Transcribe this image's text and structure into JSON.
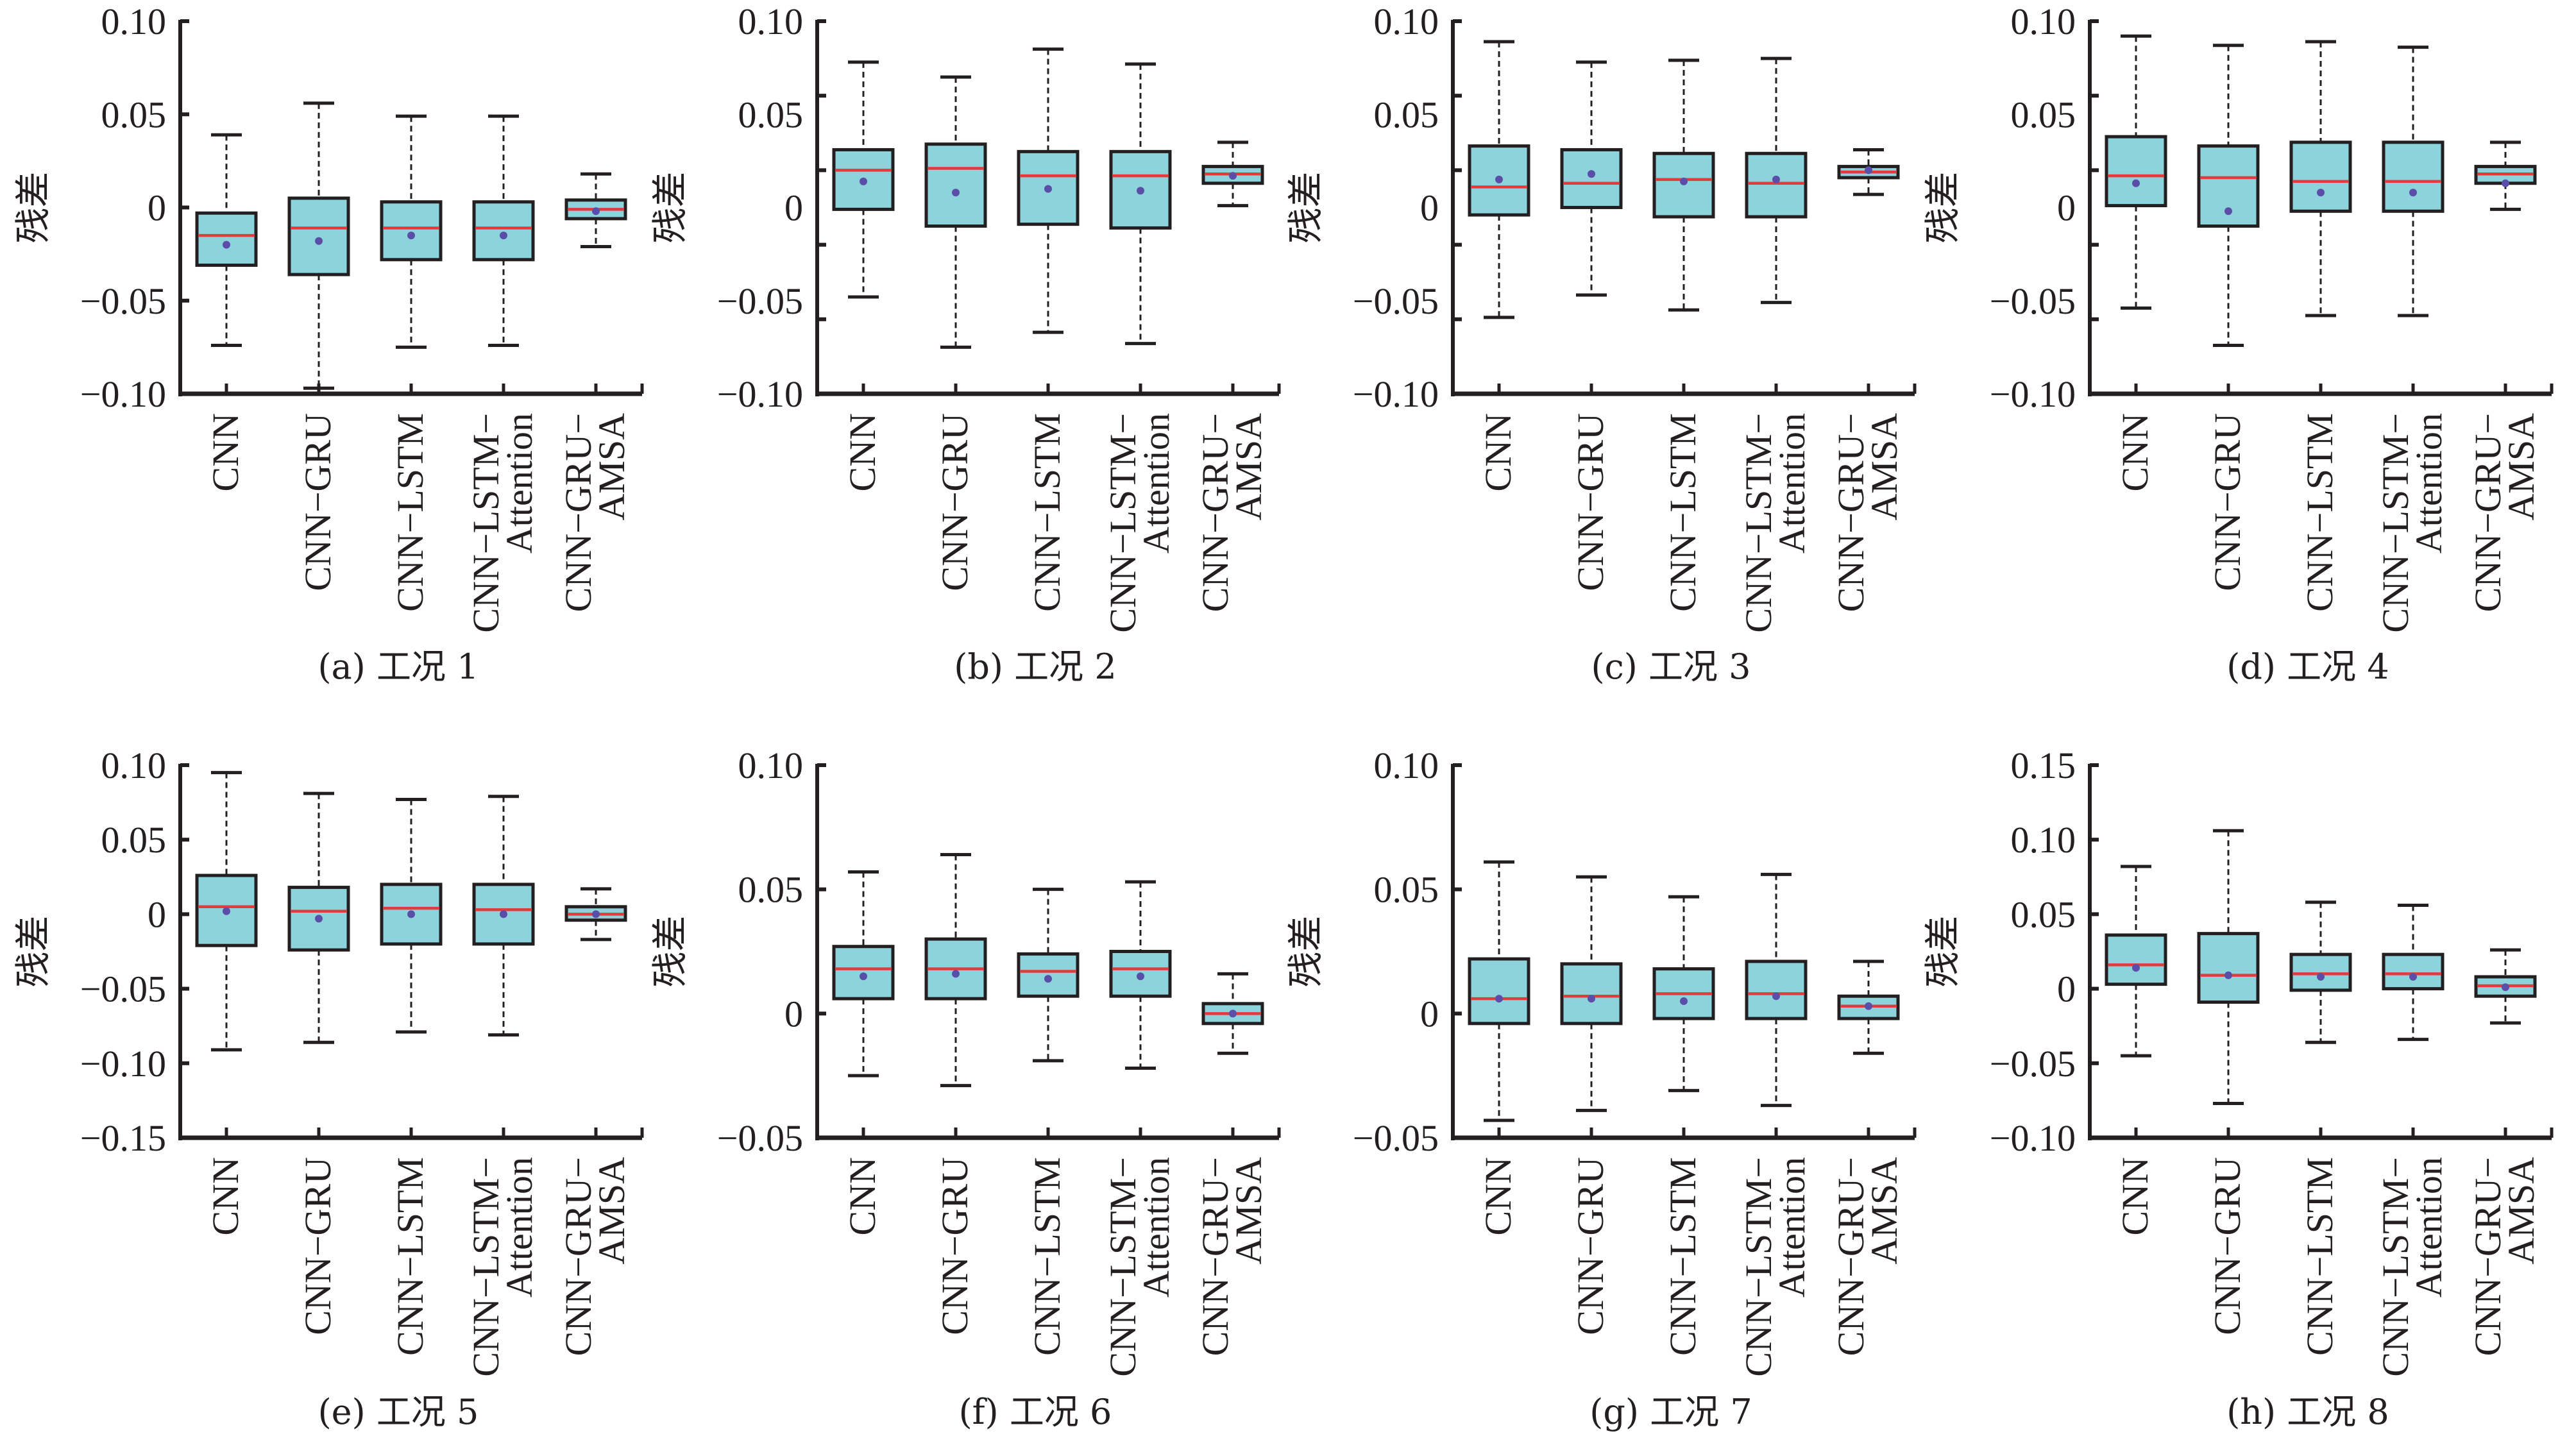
{
  "colors": {
    "box_fill": "#8dd3db",
    "box_edge": "#231f20",
    "median": "#e03c3c",
    "mean": "#5b4ea8",
    "axis": "#231f20"
  },
  "chart_data": [
    {
      "type": "box",
      "caption": "(a) 工况 1",
      "ylabel": "残差",
      "ylim": [
        -0.1,
        0.1
      ],
      "ytick_labels": [
        {
          "value": 0.1,
          "label": "0.10"
        },
        {
          "value": 0.05,
          "label": "0.05"
        },
        {
          "value": 0,
          "label": "0"
        },
        {
          "value": -0.05,
          "label": "−0.05"
        },
        {
          "value": -0.1,
          "label": "−0.10"
        }
      ],
      "ytick_marks": [
        0.1,
        0.05,
        0,
        -0.05,
        -0.1
      ],
      "categories": [
        [
          "CNN"
        ],
        [
          "CNN−GRU"
        ],
        [
          "CNN−LSTM"
        ],
        [
          "CNN−LSTM−",
          "Attention"
        ],
        [
          "CNN−GRU−",
          "AMSA"
        ]
      ],
      "boxes": [
        {
          "whisker_low": -0.074,
          "q1": -0.031,
          "median": -0.015,
          "q3": -0.003,
          "whisker_high": 0.039,
          "mean": -0.02
        },
        {
          "whisker_low": -0.097,
          "q1": -0.036,
          "median": -0.011,
          "q3": 0.005,
          "whisker_high": 0.056,
          "mean": -0.018
        },
        {
          "whisker_low": -0.075,
          "q1": -0.028,
          "median": -0.011,
          "q3": 0.003,
          "whisker_high": 0.049,
          "mean": -0.015
        },
        {
          "whisker_low": -0.074,
          "q1": -0.028,
          "median": -0.011,
          "q3": 0.003,
          "whisker_high": 0.049,
          "mean": -0.015
        },
        {
          "whisker_low": -0.021,
          "q1": -0.006,
          "median": -0.001,
          "q3": 0.004,
          "whisker_high": 0.018,
          "mean": -0.002
        }
      ]
    },
    {
      "type": "box",
      "caption": "(b) 工况 2",
      "ylabel": "残差",
      "ylim": [
        -0.1,
        0.1
      ],
      "ytick_labels": [
        {
          "value": 0.1,
          "label": "0.10"
        },
        {
          "value": 0.05,
          "label": "0.05"
        },
        {
          "value": 0,
          "label": "0"
        },
        {
          "value": -0.05,
          "label": "−0.05"
        },
        {
          "value": -0.1,
          "label": "−0.10"
        }
      ],
      "ytick_marks": [
        0.1,
        0.06,
        0.02,
        -0.02,
        -0.06,
        -0.1
      ],
      "categories": [
        [
          "CNN"
        ],
        [
          "CNN−GRU"
        ],
        [
          "CNN−LSTM"
        ],
        [
          "CNN−LSTM−",
          "Attention"
        ],
        [
          "CNN−GRU−",
          "AMSA"
        ]
      ],
      "boxes": [
        {
          "whisker_low": -0.048,
          "q1": -0.001,
          "median": 0.02,
          "q3": 0.031,
          "whisker_high": 0.078,
          "mean": 0.014
        },
        {
          "whisker_low": -0.075,
          "q1": -0.01,
          "median": 0.021,
          "q3": 0.034,
          "whisker_high": 0.07,
          "mean": 0.008
        },
        {
          "whisker_low": -0.067,
          "q1": -0.009,
          "median": 0.017,
          "q3": 0.03,
          "whisker_high": 0.085,
          "mean": 0.01
        },
        {
          "whisker_low": -0.073,
          "q1": -0.011,
          "median": 0.017,
          "q3": 0.03,
          "whisker_high": 0.077,
          "mean": 0.009
        },
        {
          "whisker_low": 0.001,
          "q1": 0.013,
          "median": 0.018,
          "q3": 0.022,
          "whisker_high": 0.035,
          "mean": 0.017
        }
      ]
    },
    {
      "type": "box",
      "caption": "(c) 工况 3",
      "ylabel": "残差",
      "ylim": [
        -0.1,
        0.1
      ],
      "ytick_labels": [
        {
          "value": 0.1,
          "label": "0.10"
        },
        {
          "value": 0.05,
          "label": "0.05"
        },
        {
          "value": 0,
          "label": "0"
        },
        {
          "value": -0.05,
          "label": "−0.05"
        },
        {
          "value": -0.1,
          "label": "−0.10"
        }
      ],
      "ytick_marks": [
        0.1,
        0.06,
        0.02,
        -0.02,
        -0.06,
        -0.1
      ],
      "categories": [
        [
          "CNN"
        ],
        [
          "CNN−GRU"
        ],
        [
          "CNN−LSTM"
        ],
        [
          "CNN−LSTM−",
          "Attention"
        ],
        [
          "CNN−GRU−",
          "AMSA"
        ]
      ],
      "boxes": [
        {
          "whisker_low": -0.059,
          "q1": -0.004,
          "median": 0.011,
          "q3": 0.033,
          "whisker_high": 0.089,
          "mean": 0.015
        },
        {
          "whisker_low": -0.047,
          "q1": 0.0,
          "median": 0.013,
          "q3": 0.031,
          "whisker_high": 0.078,
          "mean": 0.018
        },
        {
          "whisker_low": -0.055,
          "q1": -0.005,
          "median": 0.015,
          "q3": 0.029,
          "whisker_high": 0.079,
          "mean": 0.014
        },
        {
          "whisker_low": -0.051,
          "q1": -0.005,
          "median": 0.013,
          "q3": 0.029,
          "whisker_high": 0.08,
          "mean": 0.015
        },
        {
          "whisker_low": 0.007,
          "q1": 0.016,
          "median": 0.019,
          "q3": 0.022,
          "whisker_high": 0.031,
          "mean": 0.02
        }
      ]
    },
    {
      "type": "box",
      "caption": "(d) 工况 4",
      "ylabel": "残差",
      "ylim": [
        -0.1,
        0.1
      ],
      "ytick_labels": [
        {
          "value": 0.1,
          "label": "0.10"
        },
        {
          "value": 0.05,
          "label": "0.05"
        },
        {
          "value": 0,
          "label": "0"
        },
        {
          "value": -0.05,
          "label": "−0.05"
        },
        {
          "value": -0.1,
          "label": "−0.10"
        }
      ],
      "ytick_marks": [
        0.1,
        0.06,
        0.02,
        -0.02,
        -0.06,
        -0.1
      ],
      "categories": [
        [
          "CNN"
        ],
        [
          "CNN−GRU"
        ],
        [
          "CNN−LSTM"
        ],
        [
          "CNN−LSTM−",
          "Attention"
        ],
        [
          "CNN−GRU−",
          "AMSA"
        ]
      ],
      "boxes": [
        {
          "whisker_low": -0.054,
          "q1": 0.001,
          "median": 0.017,
          "q3": 0.038,
          "whisker_high": 0.092,
          "mean": 0.013
        },
        {
          "whisker_low": -0.074,
          "q1": -0.01,
          "median": 0.016,
          "q3": 0.033,
          "whisker_high": 0.087,
          "mean": -0.002
        },
        {
          "whisker_low": -0.058,
          "q1": -0.002,
          "median": 0.014,
          "q3": 0.035,
          "whisker_high": 0.089,
          "mean": 0.008
        },
        {
          "whisker_low": -0.058,
          "q1": -0.002,
          "median": 0.014,
          "q3": 0.035,
          "whisker_high": 0.086,
          "mean": 0.008
        },
        {
          "whisker_low": -0.001,
          "q1": 0.013,
          "median": 0.018,
          "q3": 0.022,
          "whisker_high": 0.035,
          "mean": 0.013
        }
      ]
    },
    {
      "type": "box",
      "caption": "(e) 工况 5",
      "ylabel": "残差",
      "ylim": [
        -0.15,
        0.1
      ],
      "ytick_labels": [
        {
          "value": 0.1,
          "label": "0.10"
        },
        {
          "value": 0.05,
          "label": "0.05"
        },
        {
          "value": 0,
          "label": "0"
        },
        {
          "value": -0.05,
          "label": "−0.05"
        },
        {
          "value": -0.1,
          "label": "−0.10"
        },
        {
          "value": -0.15,
          "label": "−0.15"
        }
      ],
      "ytick_marks": [
        0.1,
        0.05,
        0,
        -0.05,
        -0.1,
        -0.15
      ],
      "categories": [
        [
          "CNN"
        ],
        [
          "CNN−GRU"
        ],
        [
          "CNN−LSTM"
        ],
        [
          "CNN−LSTM−",
          "Attention"
        ],
        [
          "CNN−GRU−",
          "AMSA"
        ]
      ],
      "boxes": [
        {
          "whisker_low": -0.091,
          "q1": -0.021,
          "median": 0.005,
          "q3": 0.026,
          "whisker_high": 0.095,
          "mean": 0.002
        },
        {
          "whisker_low": -0.086,
          "q1": -0.024,
          "median": 0.002,
          "q3": 0.018,
          "whisker_high": 0.081,
          "mean": -0.003
        },
        {
          "whisker_low": -0.079,
          "q1": -0.02,
          "median": 0.004,
          "q3": 0.02,
          "whisker_high": 0.077,
          "mean": 0.0
        },
        {
          "whisker_low": -0.081,
          "q1": -0.02,
          "median": 0.003,
          "q3": 0.02,
          "whisker_high": 0.079,
          "mean": 0.0
        },
        {
          "whisker_low": -0.017,
          "q1": -0.004,
          "median": 0.0,
          "q3": 0.005,
          "whisker_high": 0.017,
          "mean": 0.0
        }
      ]
    },
    {
      "type": "box",
      "caption": "(f) 工况 6",
      "ylabel": "残差",
      "ylim": [
        -0.05,
        0.1
      ],
      "ytick_labels": [
        {
          "value": 0.1,
          "label": "0.10"
        },
        {
          "value": 0.05,
          "label": "0.05"
        },
        {
          "value": 0,
          "label": "0"
        },
        {
          "value": -0.05,
          "label": "−0.05"
        }
      ],
      "ytick_marks": [
        0.1,
        0.05,
        0,
        -0.05
      ],
      "categories": [
        [
          "CNN"
        ],
        [
          "CNN−GRU"
        ],
        [
          "CNN−LSTM"
        ],
        [
          "CNN−LSTM−",
          "Attention"
        ],
        [
          "CNN−GRU−",
          "AMSA"
        ]
      ],
      "boxes": [
        {
          "whisker_low": -0.025,
          "q1": 0.006,
          "median": 0.018,
          "q3": 0.027,
          "whisker_high": 0.057,
          "mean": 0.015
        },
        {
          "whisker_low": -0.029,
          "q1": 0.006,
          "median": 0.018,
          "q3": 0.03,
          "whisker_high": 0.064,
          "mean": 0.016
        },
        {
          "whisker_low": -0.019,
          "q1": 0.007,
          "median": 0.017,
          "q3": 0.024,
          "whisker_high": 0.05,
          "mean": 0.014
        },
        {
          "whisker_low": -0.022,
          "q1": 0.007,
          "median": 0.018,
          "q3": 0.025,
          "whisker_high": 0.053,
          "mean": 0.015
        },
        {
          "whisker_low": -0.016,
          "q1": -0.004,
          "median": 0.0,
          "q3": 0.004,
          "whisker_high": 0.016,
          "mean": 0.0
        }
      ]
    },
    {
      "type": "box",
      "caption": "(g) 工况 7",
      "ylabel": "残差",
      "ylim": [
        -0.05,
        0.1
      ],
      "ytick_labels": [
        {
          "value": 0.1,
          "label": "0.10"
        },
        {
          "value": 0.05,
          "label": "0.05"
        },
        {
          "value": 0,
          "label": "0"
        },
        {
          "value": -0.05,
          "label": "−0.05"
        }
      ],
      "ytick_marks": [
        0.1,
        0.05,
        0,
        -0.05
      ],
      "categories": [
        [
          "CNN"
        ],
        [
          "CNN−GRU"
        ],
        [
          "CNN−LSTM"
        ],
        [
          "CNN−LSTM−",
          "Attention"
        ],
        [
          "CNN−GRU−",
          "AMSA"
        ]
      ],
      "boxes": [
        {
          "whisker_low": -0.043,
          "q1": -0.004,
          "median": 0.006,
          "q3": 0.022,
          "whisker_high": 0.061,
          "mean": 0.006
        },
        {
          "whisker_low": -0.039,
          "q1": -0.004,
          "median": 0.007,
          "q3": 0.02,
          "whisker_high": 0.055,
          "mean": 0.006
        },
        {
          "whisker_low": -0.031,
          "q1": -0.002,
          "median": 0.008,
          "q3": 0.018,
          "whisker_high": 0.047,
          "mean": 0.005
        },
        {
          "whisker_low": -0.037,
          "q1": -0.002,
          "median": 0.008,
          "q3": 0.021,
          "whisker_high": 0.056,
          "mean": 0.007
        },
        {
          "whisker_low": -0.016,
          "q1": -0.002,
          "median": 0.003,
          "q3": 0.007,
          "whisker_high": 0.021,
          "mean": 0.003
        }
      ]
    },
    {
      "type": "box",
      "caption": "(h) 工况 8",
      "ylabel": "残差",
      "ylim": [
        -0.1,
        0.15
      ],
      "ytick_labels": [
        {
          "value": 0.15,
          "label": "0.15"
        },
        {
          "value": 0.1,
          "label": "0.10"
        },
        {
          "value": 0.05,
          "label": "0.05"
        },
        {
          "value": 0,
          "label": "0"
        },
        {
          "value": -0.05,
          "label": "−0.05"
        },
        {
          "value": -0.1,
          "label": "−0.10"
        }
      ],
      "ytick_marks": [
        0.15,
        0.1,
        0.05,
        0,
        -0.05,
        -0.1
      ],
      "categories": [
        [
          "CNN"
        ],
        [
          "CNN−GRU"
        ],
        [
          "CNN−LSTM"
        ],
        [
          "CNN−LSTM−",
          "Attention"
        ],
        [
          "CNN−GRU−",
          "AMSA"
        ]
      ],
      "boxes": [
        {
          "whisker_low": -0.045,
          "q1": 0.003,
          "median": 0.016,
          "q3": 0.036,
          "whisker_high": 0.082,
          "mean": 0.014
        },
        {
          "whisker_low": -0.077,
          "q1": -0.009,
          "median": 0.009,
          "q3": 0.037,
          "whisker_high": 0.106,
          "mean": 0.009
        },
        {
          "whisker_low": -0.036,
          "q1": -0.001,
          "median": 0.01,
          "q3": 0.023,
          "whisker_high": 0.058,
          "mean": 0.008
        },
        {
          "whisker_low": -0.034,
          "q1": 0.0,
          "median": 0.01,
          "q3": 0.023,
          "whisker_high": 0.056,
          "mean": 0.008
        },
        {
          "whisker_low": -0.023,
          "q1": -0.005,
          "median": 0.002,
          "q3": 0.008,
          "whisker_high": 0.026,
          "mean": 0.001
        }
      ]
    }
  ]
}
